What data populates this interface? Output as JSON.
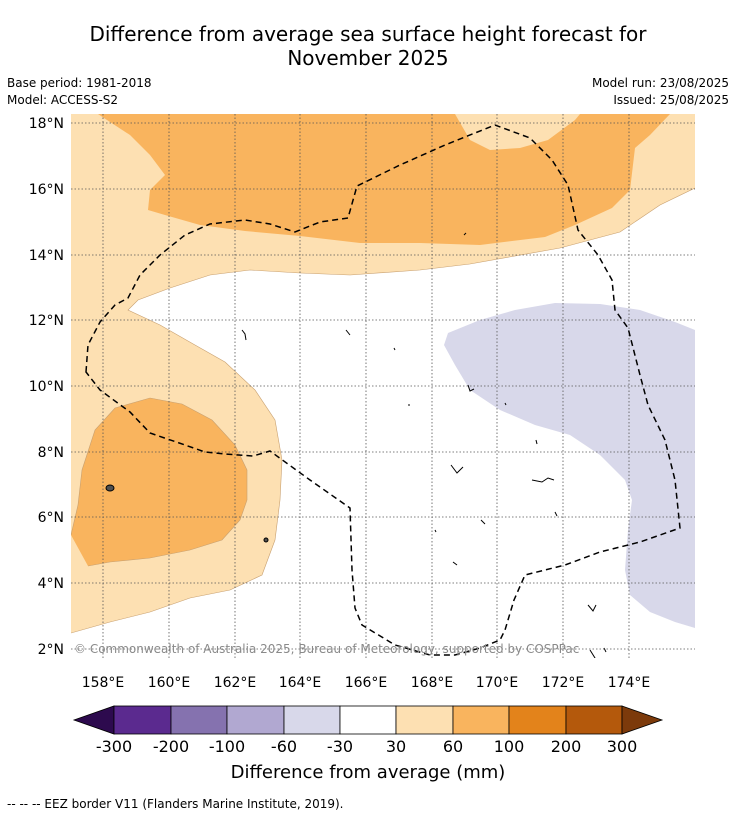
{
  "title_line1": "Difference from average sea surface height forecast for",
  "title_line2": "November 2025",
  "base_period": "Base period: 1981-2018",
  "model": "Model: ACCESS-S2",
  "model_run": "Model run: 23/08/2025",
  "issued": "Issued: 25/08/2025",
  "credit": "© Commonwealth of Australia 2025, Bureau of Meteorology, supported by COSPPac",
  "lat_labels": [
    "18°N",
    "16°N",
    "14°N",
    "12°N",
    "10°N",
    "8°N",
    "6°N",
    "4°N",
    "2°N"
  ],
  "lon_labels": [
    "158°E",
    "160°E",
    "162°E",
    "164°E",
    "166°E",
    "168°E",
    "170°E",
    "172°E",
    "174°E"
  ],
  "colorbar": {
    "title": "Difference from average (mm)",
    "ticks": [
      "-300",
      "-200",
      "-100",
      "-60",
      "-30",
      "30",
      "60",
      "100",
      "200",
      "300"
    ],
    "colors": {
      "below_-300": "#2d0a4e",
      "-300_-200": "#5b2a8f",
      "-200_-100": "#8572af",
      "-100_-60": "#b1a8d1",
      "-60_-30": "#d8d8ea",
      "-30_30": "#ffffff",
      "30_60": "#fde0b2",
      "60_100": "#f9b45e",
      "100_200": "#e3831b",
      "200_300": "#b4590c",
      "above_300": "#7c3a0b"
    }
  },
  "legend_text": "-- -- -- EEZ border V11 (Flanders Marine Institute, 2019)."
}
